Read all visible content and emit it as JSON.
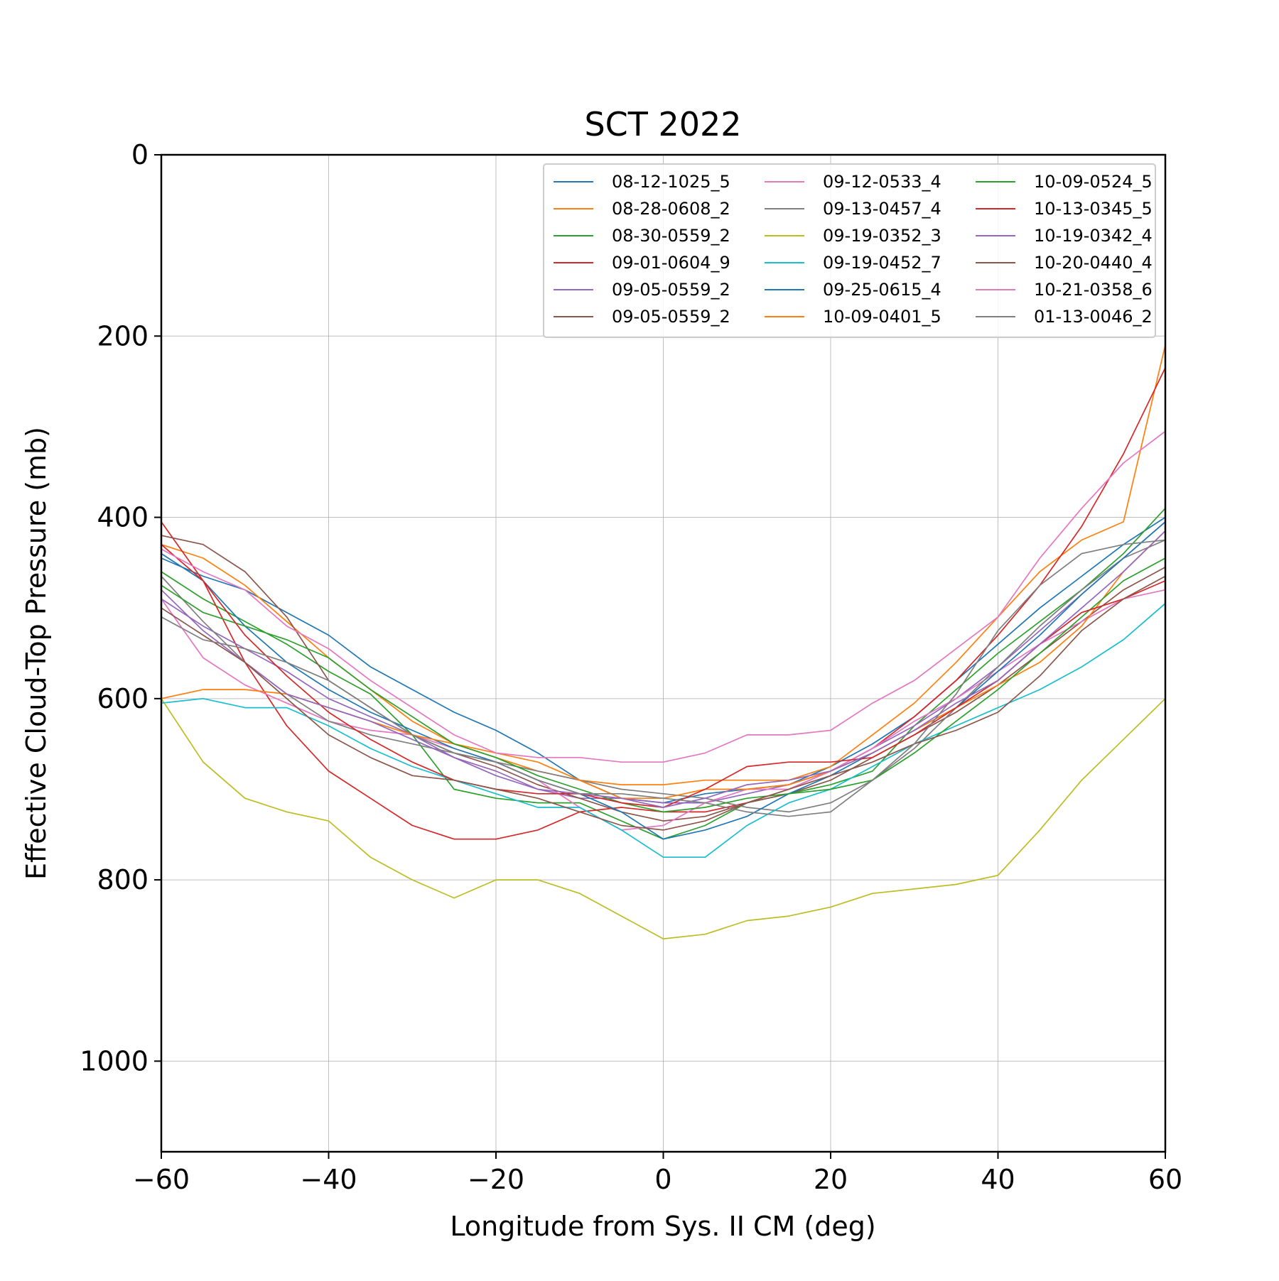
{
  "chart_data": {
    "type": "line",
    "title": "SCT 2022",
    "xlabel": "Longitude from Sys. II CM (deg)",
    "ylabel": "Effective Cloud-Top Pressure (mb)",
    "xlim": [
      -60,
      60
    ],
    "ylim": [
      1100,
      0
    ],
    "y_inverted": true,
    "xticks": [
      -60,
      -40,
      -20,
      0,
      20,
      40,
      60
    ],
    "xtick_labels": [
      "−60",
      "−40",
      "−20",
      "0",
      "20",
      "40",
      "60"
    ],
    "yticks": [
      0,
      200,
      400,
      600,
      800,
      1000
    ],
    "ytick_labels": [
      "0",
      "200",
      "400",
      "600",
      "800",
      "1000"
    ],
    "grid": true,
    "legend_position": "top-right",
    "legend_columns": 3,
    "x": [
      -60,
      -55,
      -50,
      -45,
      -40,
      -35,
      -30,
      -25,
      -20,
      -15,
      -10,
      -5,
      0,
      5,
      10,
      15,
      20,
      25,
      30,
      35,
      40,
      45,
      50,
      55,
      60
    ],
    "series": [
      {
        "name": "08-12-1025_5",
        "color": "#1f77b4",
        "values": [
          445,
          465,
          480,
          505,
          530,
          565,
          590,
          615,
          635,
          660,
          690,
          710,
          715,
          705,
          700,
          695,
          675,
          650,
          620,
          580,
          540,
          500,
          465,
          430,
          400
        ]
      },
      {
        "name": "08-28-0608_2",
        "color": "#ff7f0e",
        "values": [
          430,
          445,
          475,
          515,
          555,
          590,
          625,
          650,
          665,
          680,
          690,
          695,
          695,
          690,
          690,
          690,
          675,
          640,
          605,
          560,
          510,
          460,
          425,
          405,
          210
        ]
      },
      {
        "name": "08-30-0559_2",
        "color": "#2ca02c",
        "values": [
          460,
          490,
          515,
          540,
          570,
          595,
          640,
          700,
          710,
          715,
          715,
          735,
          755,
          740,
          715,
          705,
          695,
          680,
          630,
          590,
          550,
          515,
          480,
          440,
          390
        ]
      },
      {
        "name": "09-01-0604_9",
        "color": "#d62728",
        "values": [
          405,
          470,
          560,
          630,
          680,
          710,
          740,
          755,
          755,
          745,
          725,
          720,
          725,
          725,
          715,
          700,
          680,
          655,
          620,
          580,
          530,
          475,
          410,
          330,
          235
        ]
      },
      {
        "name": "09-05-0559_2",
        "color": "#9467bd",
        "values": [
          490,
          520,
          545,
          570,
          600,
          620,
          640,
          665,
          680,
          700,
          710,
          710,
          715,
          715,
          705,
          695,
          680,
          655,
          630,
          600,
          565,
          525,
          485,
          445,
          405
        ]
      },
      {
        "name": "09-05-0559_2",
        "color": "#8c564b",
        "values": [
          420,
          430,
          460,
          510,
          580,
          610,
          640,
          660,
          675,
          695,
          710,
          725,
          735,
          730,
          715,
          705,
          690,
          665,
          640,
          615,
          585,
          550,
          515,
          480,
          455
        ]
      },
      {
        "name": "09-12-0533_4",
        "color": "#e377c2",
        "values": [
          490,
          555,
          585,
          605,
          625,
          635,
          640,
          655,
          670,
          690,
          720,
          745,
          740,
          715,
          700,
          700,
          680,
          655,
          625,
          600,
          570,
          540,
          515,
          490,
          480
        ]
      },
      {
        "name": "09-13-0457_4",
        "color": "#7f7f7f",
        "values": [
          465,
          515,
          560,
          595,
          625,
          640,
          650,
          660,
          670,
          680,
          690,
          700,
          705,
          710,
          720,
          725,
          715,
          690,
          655,
          610,
          565,
          520,
          480,
          445,
          425
        ]
      },
      {
        "name": "09-19-0352_3",
        "color": "#bcbd22",
        "values": [
          600,
          670,
          710,
          725,
          735,
          775,
          800,
          820,
          800,
          800,
          815,
          840,
          865,
          860,
          845,
          840,
          830,
          815,
          810,
          805,
          795,
          745,
          690,
          645,
          600
        ]
      },
      {
        "name": "09-19-0452_7",
        "color": "#17becf",
        "values": [
          605,
          600,
          610,
          610,
          630,
          655,
          675,
          690,
          705,
          720,
          720,
          745,
          775,
          775,
          740,
          715,
          700,
          675,
          650,
          630,
          610,
          590,
          565,
          535,
          495
        ]
      },
      {
        "name": "09-25-0615_4",
        "color": "#1f77b4",
        "values": [
          440,
          470,
          520,
          560,
          590,
          615,
          635,
          655,
          670,
          690,
          705,
          725,
          755,
          745,
          730,
          705,
          685,
          660,
          635,
          610,
          570,
          530,
          485,
          445,
          405
        ]
      },
      {
        "name": "10-09-0401_5",
        "color": "#ff7f0e",
        "values": [
          600,
          590,
          590,
          595,
          610,
          625,
          640,
          650,
          660,
          670,
          690,
          710,
          710,
          700,
          700,
          695,
          680,
          660,
          635,
          610,
          585,
          560,
          520,
          460,
          415
        ]
      },
      {
        "name": "10-09-0524_5",
        "color": "#2ca02c",
        "values": [
          475,
          505,
          520,
          535,
          555,
          590,
          620,
          650,
          665,
          685,
          700,
          715,
          725,
          720,
          710,
          705,
          700,
          690,
          660,
          625,
          590,
          550,
          510,
          470,
          445
        ]
      },
      {
        "name": "10-13-0345_5",
        "color": "#d62728",
        "values": [
          430,
          470,
          530,
          575,
          615,
          645,
          670,
          690,
          700,
          705,
          705,
          715,
          720,
          700,
          675,
          670,
          670,
          665,
          640,
          610,
          580,
          540,
          505,
          490,
          470
        ]
      },
      {
        "name": "10-19-0342_4",
        "color": "#9467bd",
        "values": [
          480,
          525,
          560,
          595,
          610,
          625,
          645,
          665,
          685,
          700,
          705,
          710,
          720,
          710,
          695,
          690,
          680,
          660,
          635,
          605,
          580,
          540,
          500,
          460,
          415
        ]
      },
      {
        "name": "10-20-0440_4",
        "color": "#8c564b",
        "values": [
          500,
          530,
          560,
          600,
          640,
          665,
          685,
          690,
          700,
          710,
          725,
          740,
          745,
          735,
          715,
          700,
          685,
          670,
          650,
          635,
          615,
          575,
          525,
          490,
          465
        ]
      },
      {
        "name": "10-21-0358_6",
        "color": "#e377c2",
        "values": [
          435,
          460,
          480,
          520,
          545,
          580,
          610,
          640,
          660,
          665,
          665,
          670,
          670,
          660,
          640,
          640,
          635,
          605,
          580,
          545,
          510,
          445,
          390,
          340,
          305
        ]
      },
      {
        "name": "01-13-0046_2",
        "color": "#7f7f7f",
        "values": [
          510,
          535,
          545,
          560,
          580,
          610,
          640,
          660,
          670,
          690,
          705,
          705,
          710,
          715,
          725,
          730,
          725,
          690,
          650,
          595,
          525,
          475,
          440,
          430,
          425
        ]
      }
    ]
  }
}
